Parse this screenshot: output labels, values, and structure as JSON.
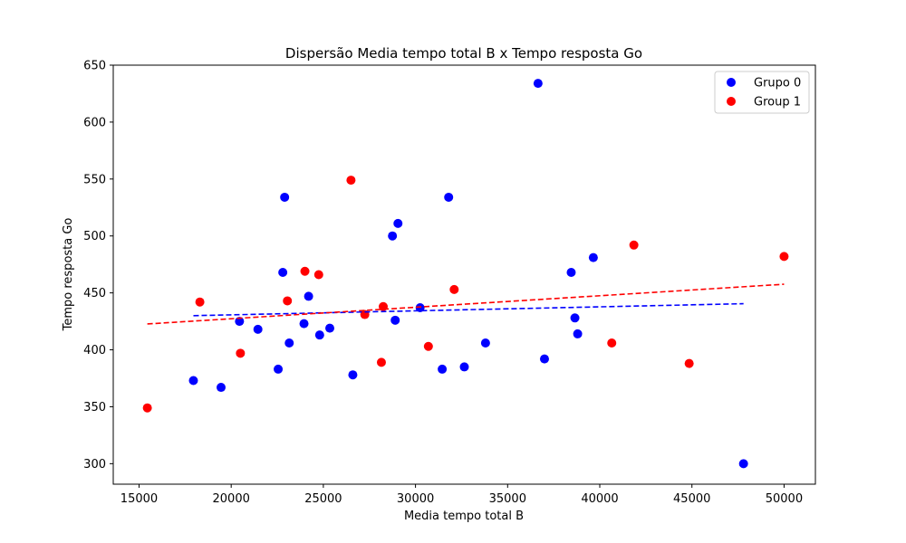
{
  "chart_data": {
    "type": "scatter",
    "title": "Dispersão Media tempo total B x Tempo resposta Go",
    "xlabel": "Media tempo total B",
    "ylabel": "Tempo resposta Go",
    "xlim": [
      13600,
      51700
    ],
    "ylim": [
      282,
      650
    ],
    "xticks": [
      15000,
      20000,
      25000,
      30000,
      35000,
      40000,
      45000,
      50000
    ],
    "yticks": [
      300,
      350,
      400,
      450,
      500,
      550,
      600,
      650
    ],
    "grid": false,
    "legend_position": "top-right",
    "series": [
      {
        "name": "Grupo 0",
        "color": "#0000ff",
        "points": [
          [
            17950,
            373
          ],
          [
            19450,
            367
          ],
          [
            20450,
            425
          ],
          [
            21450,
            418
          ],
          [
            22550,
            383
          ],
          [
            22800,
            468
          ],
          [
            22900,
            534
          ],
          [
            23150,
            406
          ],
          [
            23950,
            423
          ],
          [
            24200,
            447
          ],
          [
            24800,
            413
          ],
          [
            25350,
            419
          ],
          [
            26600,
            378
          ],
          [
            28750,
            500
          ],
          [
            28900,
            426
          ],
          [
            29050,
            511
          ],
          [
            30250,
            437
          ],
          [
            31450,
            383
          ],
          [
            31800,
            534
          ],
          [
            32650,
            385
          ],
          [
            33800,
            406
          ],
          [
            36650,
            634
          ],
          [
            37000,
            392
          ],
          [
            38450,
            468
          ],
          [
            38650,
            428
          ],
          [
            38800,
            414
          ],
          [
            39650,
            481
          ],
          [
            47800,
            300
          ]
        ],
        "trendline": {
          "x": [
            17950,
            47800
          ],
          "y": [
            430,
            440.5
          ]
        }
      },
      {
        "name": "Group 1",
        "color": "#ff0000",
        "points": [
          [
            15450,
            349
          ],
          [
            18300,
            442
          ],
          [
            20500,
            397
          ],
          [
            23050,
            443
          ],
          [
            24000,
            469
          ],
          [
            24750,
            466
          ],
          [
            26500,
            549
          ],
          [
            27250,
            431
          ],
          [
            28150,
            389
          ],
          [
            28250,
            438
          ],
          [
            30700,
            403
          ],
          [
            32100,
            453
          ],
          [
            40650,
            406
          ],
          [
            41850,
            492
          ],
          [
            44850,
            388
          ],
          [
            50000,
            482
          ]
        ],
        "trendline": {
          "x": [
            15450,
            50000
          ],
          "y": [
            422.7,
            457.6
          ]
        }
      }
    ]
  }
}
